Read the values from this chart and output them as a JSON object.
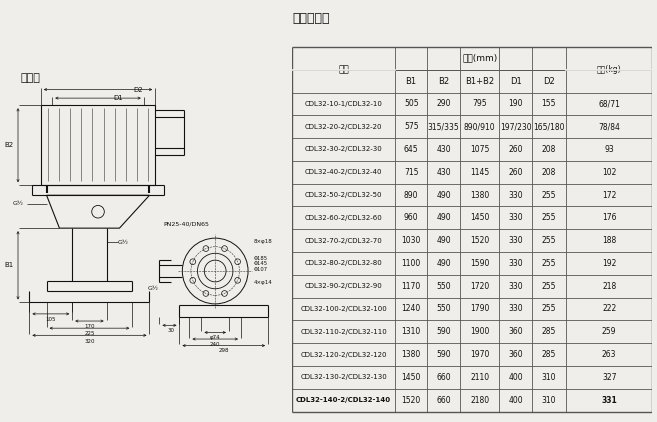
{
  "title_left": "安装图",
  "title_right": "尺寸和重量",
  "table_header_main": "尺寸(mm)",
  "table_header_weight": "重量(kg)",
  "table_col_model": "型号",
  "table_cols": [
    "B1",
    "B2",
    "B1+B2",
    "D1",
    "D2"
  ],
  "table_rows": [
    [
      "CDL32-10-1/CDL32-10",
      "505",
      "290",
      "795",
      "190",
      "155",
      "68/71"
    ],
    [
      "CDL32-20-2/CDL32-20",
      "575",
      "315/335",
      "890/910",
      "197/230",
      "165/180",
      "78/84"
    ],
    [
      "CDL32-30-2/CDL32-30",
      "645",
      "430",
      "1075",
      "260",
      "208",
      "93"
    ],
    [
      "CDL32-40-2/CDL32-40",
      "715",
      "430",
      "1145",
      "260",
      "208",
      "102"
    ],
    [
      "CDL32-50-2/CDL32-50",
      "890",
      "490",
      "1380",
      "330",
      "255",
      "172"
    ],
    [
      "CDL32-60-2/CDL32-60",
      "960",
      "490",
      "1450",
      "330",
      "255",
      "176"
    ],
    [
      "CDL32-70-2/CDL32-70",
      "1030",
      "490",
      "1520",
      "330",
      "255",
      "188"
    ],
    [
      "CDL32-80-2/CDL32-80",
      "1100",
      "490",
      "1590",
      "330",
      "255",
      "192"
    ],
    [
      "CDL32-90-2/CDL32-90",
      "1170",
      "550",
      "1720",
      "330",
      "255",
      "218"
    ],
    [
      "CDL32-100-2/CDL32-100",
      "1240",
      "550",
      "1790",
      "330",
      "255",
      "222"
    ],
    [
      "CDL32-110-2/CDL32-110",
      "1310",
      "590",
      "1900",
      "360",
      "285",
      "259"
    ],
    [
      "CDL32-120-2/CDL32-120",
      "1380",
      "590",
      "1970",
      "360",
      "285",
      "263"
    ],
    [
      "CDL32-130-2/CDL32-130",
      "1450",
      "660",
      "2110",
      "400",
      "310",
      "327"
    ],
    [
      "CDL32-140-2/CDL32-140",
      "1520",
      "660",
      "2180",
      "400",
      "310",
      "331"
    ]
  ],
  "last_row_bold": true,
  "bg_color": "#f0eeea",
  "table_line_color": "#555555",
  "text_color": "#111111"
}
